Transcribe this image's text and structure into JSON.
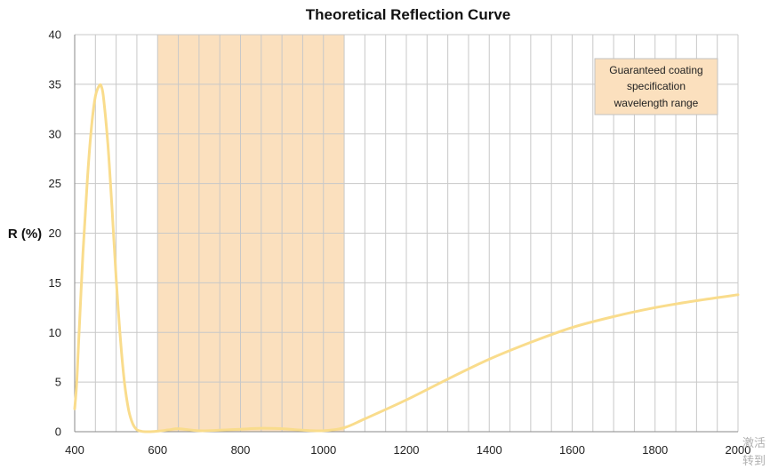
{
  "chart_data": {
    "type": "line",
    "title": "Theoretical Reflection Curve",
    "xlabel": "",
    "ylabel": "R (%)",
    "xlim": [
      400,
      2000
    ],
    "ylim": [
      0,
      40
    ],
    "x_ticks": [
      400,
      600,
      800,
      1000,
      1200,
      1400,
      1600,
      1800,
      2000
    ],
    "y_ticks": [
      0,
      5,
      10,
      15,
      20,
      25,
      30,
      35,
      40
    ],
    "grid": true,
    "series": [
      {
        "color": "#F9DC8C",
        "x": [
          400,
          405,
          410,
          420,
          430,
          440,
          450,
          460,
          465,
          470,
          480,
          490,
          500,
          510,
          520,
          530,
          540,
          550,
          560,
          570,
          580,
          600,
          630,
          650,
          700,
          750,
          800,
          850,
          900,
          950,
          1000,
          1050,
          1100,
          1200,
          1300,
          1400,
          1500,
          1600,
          1700,
          1800,
          1900,
          2000
        ],
        "y": [
          2.3,
          5,
          9.5,
          18,
          25,
          30.5,
          33.8,
          34.9,
          34.7,
          33.5,
          29,
          22.5,
          15.5,
          9.5,
          5,
          2.2,
          0.8,
          0.2,
          0.05,
          0,
          0,
          0.05,
          0.2,
          0.3,
          0.1,
          0.15,
          0.25,
          0.35,
          0.3,
          0.15,
          0.1,
          0.4,
          1.3,
          3.2,
          5.3,
          7.3,
          9.0,
          10.5,
          11.6,
          12.5,
          13.2,
          13.8
        ]
      }
    ],
    "highlight_band": {
      "x": [
        600,
        1050
      ],
      "color": "#FBE0BE"
    },
    "annotation": {
      "lines": [
        "Guaranteed coating",
        "specification",
        "wavelength range"
      ],
      "position": "top-right",
      "fill": "#FBE0BE"
    },
    "colors": {
      "grid": "#c8c8c8",
      "axis": "#8a8a8a",
      "line": "#F9DC8C",
      "band": "#FBE0BE"
    }
  },
  "watermark": {
    "lines": [
      "激活",
      "转到"
    ]
  }
}
